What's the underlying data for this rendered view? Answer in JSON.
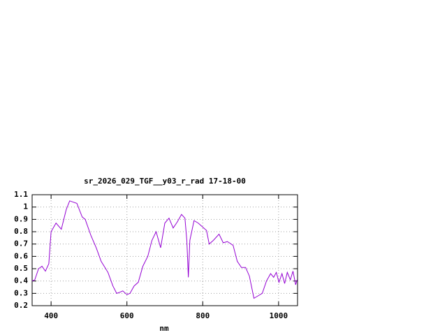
{
  "chart_data": {
    "type": "line",
    "title": "sr_2026_029_TGF__y03_r_rad 17-18-00",
    "x_label": "nm",
    "color": "#9400d3",
    "grid": true,
    "xlim": [
      350,
      1050
    ],
    "xticks": [
      400,
      600,
      800,
      1000
    ],
    "ylim": [
      0.2,
      1.1
    ],
    "yticks": [
      0.2,
      0.3,
      0.4,
      0.5,
      0.6,
      0.7,
      0.8,
      0.9,
      1,
      1.1
    ],
    "x": [
      350,
      357,
      367,
      376,
      385,
      394,
      400,
      413,
      427,
      440,
      449,
      468,
      482,
      490,
      505,
      519,
      532,
      550,
      563,
      573,
      582,
      589,
      600,
      608,
      619,
      630,
      642,
      655,
      666,
      677,
      689,
      700,
      711,
      722,
      733,
      744,
      753,
      758,
      762,
      766,
      777,
      788,
      810,
      817,
      828,
      843,
      854,
      865,
      880,
      891,
      902,
      913,
      923,
      935,
      946,
      957,
      968,
      979,
      987,
      994,
      1001,
      1009,
      1016,
      1023,
      1031,
      1038,
      1045,
      1049
    ],
    "values": [
      0.4,
      0.41,
      0.5,
      0.52,
      0.48,
      0.54,
      0.8,
      0.87,
      0.82,
      0.98,
      1.05,
      1.03,
      0.92,
      0.9,
      0.77,
      0.67,
      0.56,
      0.47,
      0.36,
      0.3,
      0.31,
      0.32,
      0.29,
      0.3,
      0.36,
      0.39,
      0.52,
      0.6,
      0.73,
      0.8,
      0.67,
      0.87,
      0.91,
      0.83,
      0.88,
      0.94,
      0.91,
      0.73,
      0.43,
      0.73,
      0.89,
      0.87,
      0.81,
      0.7,
      0.73,
      0.78,
      0.71,
      0.72,
      0.69,
      0.56,
      0.51,
      0.51,
      0.44,
      0.26,
      0.28,
      0.3,
      0.4,
      0.46,
      0.43,
      0.47,
      0.39,
      0.46,
      0.38,
      0.47,
      0.41,
      0.48,
      0.37,
      0.41
    ]
  }
}
